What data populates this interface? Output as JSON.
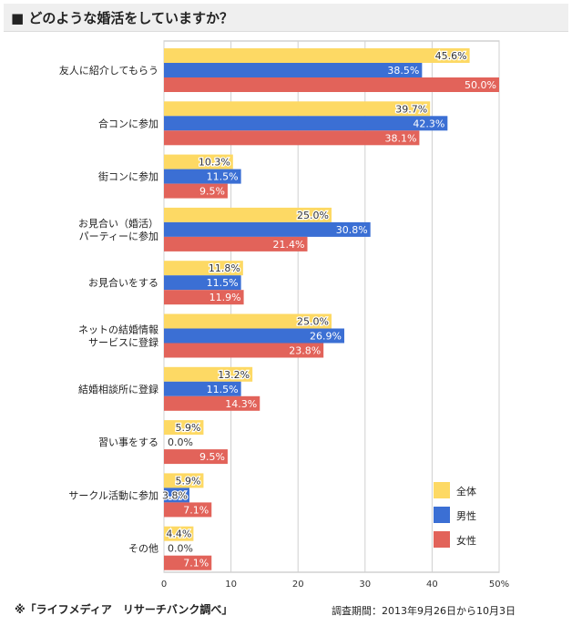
{
  "header": {
    "title": "■ どのような婚活をしていますか？"
  },
  "footer": {
    "source": "※「ライフメディア　リサーチバンク調べ」",
    "period": "調査期間：2013年9月26日から10月3日"
  },
  "chart_data": {
    "type": "bar",
    "orientation": "horizontal",
    "categories": [
      [
        "友人に紹介してもらう"
      ],
      [
        "合コンに参加"
      ],
      [
        "街コンに参加"
      ],
      [
        "お見合い（婚活）",
        "パーティーに参加"
      ],
      [
        "お見合いをする"
      ],
      [
        "ネットの結婚情報",
        "サービスに登録"
      ],
      [
        "結婚相談所に登録"
      ],
      [
        "習い事をする"
      ],
      [
        "サークル活動に参加"
      ],
      [
        "その他"
      ]
    ],
    "series": [
      {
        "name": "全体",
        "color": "#fdd964",
        "values": [
          45.6,
          39.7,
          10.3,
          25.0,
          11.8,
          25.0,
          13.2,
          5.9,
          5.9,
          4.4
        ],
        "labels": [
          "45.6%",
          "39.7%",
          "10.3%",
          "25.0%",
          "11.8%",
          "25.0%",
          "13.2%",
          "5.9%",
          "5.9%",
          "4.4%"
        ]
      },
      {
        "name": "男性",
        "color": "#3b6fd4",
        "values": [
          38.5,
          42.3,
          11.5,
          30.8,
          11.5,
          26.9,
          11.5,
          0.0,
          3.8,
          0.0
        ],
        "labels": [
          "38.5%",
          "42.3%",
          "11.5%",
          "30.8%",
          "11.5%",
          "26.9%",
          "11.5%",
          "0.0%",
          "3.8%",
          "0.0%"
        ]
      },
      {
        "name": "女性",
        "color": "#e2635a",
        "values": [
          50.0,
          38.1,
          9.5,
          21.4,
          11.9,
          23.8,
          14.3,
          9.5,
          7.1,
          7.1
        ],
        "labels": [
          "50.0%",
          "38.1%",
          "9.5%",
          "21.4%",
          "11.9%",
          "23.8%",
          "14.3%",
          "9.5%",
          "7.1%",
          "7.1%"
        ]
      }
    ],
    "xlim": [
      0,
      50
    ],
    "ticks": [
      "0",
      "10",
      "20",
      "30",
      "40",
      "50%"
    ],
    "tick_values": [
      0,
      10,
      20,
      30,
      40,
      50
    ],
    "grid": true,
    "legend_position": "bottom-right"
  }
}
